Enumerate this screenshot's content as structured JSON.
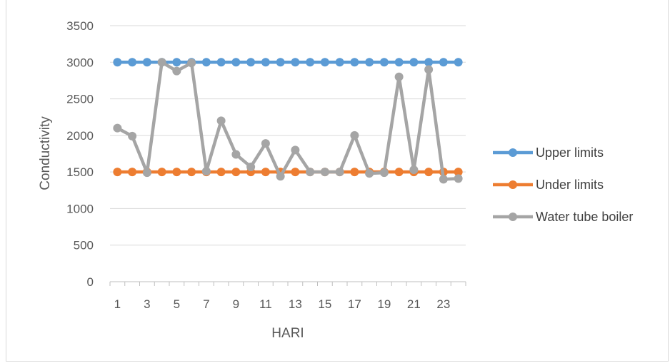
{
  "chart_data": {
    "type": "line",
    "xlabel": "HARI",
    "ylabel": "Conductivity",
    "ylim": [
      0,
      3500
    ],
    "yticks": [
      0,
      500,
      1000,
      1500,
      2000,
      2500,
      3000,
      3500
    ],
    "x": [
      1,
      2,
      3,
      4,
      5,
      6,
      7,
      8,
      9,
      10,
      11,
      12,
      13,
      14,
      15,
      16,
      17,
      18,
      19,
      20,
      21,
      22,
      23,
      24
    ],
    "x_tick_labels": [
      "1",
      "3",
      "5",
      "7",
      "9",
      "11",
      "13",
      "15",
      "17",
      "19",
      "21",
      "23"
    ],
    "grid": "horizontal",
    "legend_position": "right",
    "series": [
      {
        "name": "Upper limits",
        "color": "#5B9BD5",
        "values": [
          3000,
          3000,
          3000,
          3000,
          3000,
          3000,
          3000,
          3000,
          3000,
          3000,
          3000,
          3000,
          3000,
          3000,
          3000,
          3000,
          3000,
          3000,
          3000,
          3000,
          3000,
          3000,
          3000,
          3000
        ]
      },
      {
        "name": "Under limits",
        "color": "#ED7D31",
        "values": [
          1500,
          1500,
          1500,
          1500,
          1500,
          1500,
          1500,
          1500,
          1500,
          1500,
          1500,
          1500,
          1500,
          1500,
          1500,
          1500,
          1500,
          1500,
          1500,
          1500,
          1500,
          1500,
          1500,
          1500
        ]
      },
      {
        "name": "Water tube boiler",
        "color": "#A5A5A5",
        "values": [
          2100,
          1990,
          1490,
          3000,
          2880,
          2990,
          1510,
          2200,
          1740,
          1570,
          1890,
          1440,
          1800,
          1500,
          1500,
          1500,
          2000,
          1480,
          1490,
          2800,
          1530,
          2900,
          1400,
          1410
        ]
      }
    ]
  }
}
